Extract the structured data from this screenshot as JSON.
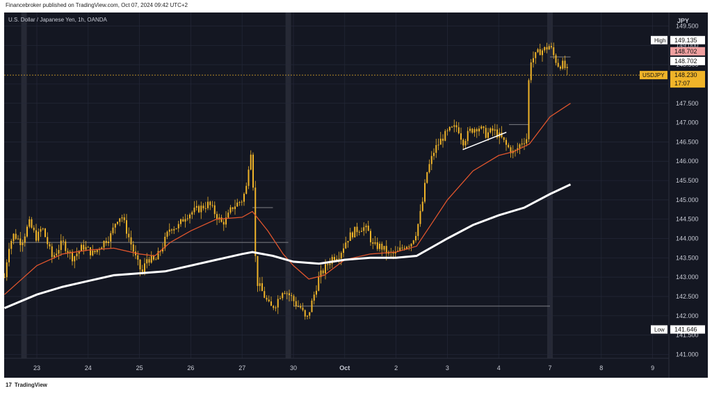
{
  "header": {
    "published": "Financebroker published on TradingView.com, Oct 07, 2024 09:42 UTC+2"
  },
  "footer": {
    "logo_mark": "17",
    "logo_text": "TradingView"
  },
  "chart_data": {
    "type": "candlestick",
    "title": "U.S. Dollar / Japanese Yen, 1h, OANDA",
    "currency": "JPY",
    "symbol": "USDJPY",
    "last_price": "148.230",
    "countdown": "17:07",
    "high_label": "High",
    "high_value": "149.135",
    "low_label": "Low",
    "low_value": "141.646",
    "marker_red": "148.702",
    "marker_white": "148.702",
    "ylim": [
      140.9,
      149.85
    ],
    "y_ticks": [
      "141.000",
      "141.500",
      "142.000",
      "142.500",
      "143.000",
      "143.500",
      "144.000",
      "144.500",
      "145.000",
      "145.500",
      "146.000",
      "146.500",
      "147.000",
      "147.500",
      "148.000",
      "148.500",
      "149.000",
      "149.500"
    ],
    "x_ticks": [
      {
        "label": "23",
        "d": 0
      },
      {
        "label": "24",
        "d": 1
      },
      {
        "label": "25",
        "d": 2
      },
      {
        "label": "26",
        "d": 3
      },
      {
        "label": "27",
        "d": 4
      },
      {
        "label": "30",
        "d": 5
      },
      {
        "label": "Oct",
        "d": 6
      },
      {
        "label": "2",
        "d": 7
      },
      {
        "label": "3",
        "d": 8
      },
      {
        "label": "4",
        "d": 9
      },
      {
        "label": "7",
        "d": 10
      },
      {
        "label": "8",
        "d": 11
      },
      {
        "label": "9",
        "d": 12
      }
    ],
    "price_path": [
      [
        -0.63,
        143.0
      ],
      [
        -0.55,
        143.8
      ],
      [
        -0.45,
        144.1
      ],
      [
        -0.3,
        143.9
      ],
      [
        -0.15,
        144.4
      ],
      [
        0.0,
        144.0
      ],
      [
        0.1,
        144.3
      ],
      [
        0.3,
        143.5
      ],
      [
        0.5,
        143.9
      ],
      [
        0.7,
        143.5
      ],
      [
        0.9,
        143.8
      ],
      [
        1.1,
        143.6
      ],
      [
        1.3,
        143.9
      ],
      [
        1.45,
        144.1
      ],
      [
        1.55,
        144.5
      ],
      [
        1.65,
        144.6
      ],
      [
        1.8,
        144.0
      ],
      [
        1.95,
        143.4
      ],
      [
        2.05,
        143.1
      ],
      [
        2.15,
        143.5
      ],
      [
        2.3,
        143.4
      ],
      [
        2.45,
        143.8
      ],
      [
        2.6,
        144.3
      ],
      [
        2.75,
        144.3
      ],
      [
        2.9,
        144.6
      ],
      [
        3.05,
        144.7
      ],
      [
        3.2,
        144.8
      ],
      [
        3.35,
        144.9
      ],
      [
        3.5,
        144.6
      ],
      [
        3.6,
        144.4
      ],
      [
        3.7,
        144.5
      ],
      [
        3.8,
        144.8
      ],
      [
        3.9,
        144.9
      ],
      [
        4.0,
        145.0
      ],
      [
        4.08,
        145.3
      ],
      [
        4.15,
        146.2
      ],
      [
        4.2,
        146.4
      ],
      [
        4.23,
        144.3
      ],
      [
        4.28,
        142.9
      ],
      [
        4.4,
        142.6
      ],
      [
        4.55,
        142.2
      ],
      [
        4.65,
        142.3
      ],
      [
        4.8,
        142.7
      ],
      [
        4.95,
        142.5
      ],
      [
        5.05,
        142.3
      ],
      [
        5.15,
        142.2
      ],
      [
        5.25,
        141.85
      ],
      [
        5.35,
        142.3
      ],
      [
        5.5,
        143.0
      ],
      [
        5.6,
        143.2
      ],
      [
        5.75,
        143.5
      ],
      [
        5.9,
        143.6
      ],
      [
        6.05,
        144.0
      ],
      [
        6.2,
        144.2
      ],
      [
        6.35,
        144.3
      ],
      [
        6.45,
        144.2
      ],
      [
        6.55,
        143.8
      ],
      [
        6.7,
        143.8
      ],
      [
        6.85,
        143.6
      ],
      [
        7.0,
        143.6
      ],
      [
        7.15,
        143.8
      ],
      [
        7.3,
        143.9
      ],
      [
        7.4,
        144.2
      ],
      [
        7.5,
        144.8
      ],
      [
        7.6,
        145.7
      ],
      [
        7.75,
        146.3
      ],
      [
        7.9,
        146.6
      ],
      [
        8.05,
        146.8
      ],
      [
        8.2,
        146.9
      ],
      [
        8.3,
        146.5
      ],
      [
        8.45,
        146.8
      ],
      [
        8.6,
        146.9
      ],
      [
        8.75,
        146.7
      ],
      [
        8.9,
        146.8
      ],
      [
        9.05,
        146.6
      ],
      [
        9.15,
        146.4
      ],
      [
        9.3,
        146.2
      ],
      [
        9.45,
        146.5
      ],
      [
        9.55,
        146.6
      ],
      [
        9.6,
        148.6
      ],
      [
        9.7,
        148.7
      ],
      [
        9.8,
        148.85
      ],
      [
        9.9,
        148.9
      ],
      [
        10.0,
        149.0
      ],
      [
        10.05,
        148.8
      ],
      [
        10.15,
        148.5
      ],
      [
        10.25,
        148.5
      ],
      [
        10.35,
        148.3
      ]
    ],
    "ma_fast": [
      [
        -0.63,
        142.55
      ],
      [
        0.0,
        143.3
      ],
      [
        0.5,
        143.6
      ],
      [
        1.0,
        143.7
      ],
      [
        1.5,
        143.75
      ],
      [
        2.0,
        143.6
      ],
      [
        2.3,
        143.55
      ],
      [
        2.6,
        143.9
      ],
      [
        3.0,
        144.2
      ],
      [
        3.5,
        144.5
      ],
      [
        4.0,
        144.55
      ],
      [
        4.2,
        144.7
      ],
      [
        4.5,
        144.2
      ],
      [
        4.8,
        143.6
      ],
      [
        5.0,
        143.3
      ],
      [
        5.3,
        142.95
      ],
      [
        5.6,
        143.05
      ],
      [
        6.0,
        143.45
      ],
      [
        6.5,
        143.6
      ],
      [
        7.0,
        143.65
      ],
      [
        7.4,
        143.8
      ],
      [
        7.7,
        144.4
      ],
      [
        8.0,
        145.0
      ],
      [
        8.5,
        145.75
      ],
      [
        9.0,
        146.15
      ],
      [
        9.3,
        146.25
      ],
      [
        9.6,
        146.45
      ],
      [
        10.0,
        147.15
      ],
      [
        10.4,
        147.5
      ]
    ],
    "ma_slow": [
      [
        -0.63,
        142.2
      ],
      [
        0.0,
        142.55
      ],
      [
        0.5,
        142.75
      ],
      [
        1.0,
        142.9
      ],
      [
        1.5,
        143.05
      ],
      [
        2.0,
        143.1
      ],
      [
        2.5,
        143.15
      ],
      [
        3.0,
        143.3
      ],
      [
        3.5,
        143.45
      ],
      [
        4.0,
        143.6
      ],
      [
        4.2,
        143.65
      ],
      [
        4.6,
        143.55
      ],
      [
        5.0,
        143.4
      ],
      [
        5.5,
        143.35
      ],
      [
        6.0,
        143.45
      ],
      [
        6.5,
        143.5
      ],
      [
        7.0,
        143.5
      ],
      [
        7.4,
        143.55
      ],
      [
        8.0,
        144.0
      ],
      [
        8.5,
        144.35
      ],
      [
        9.0,
        144.6
      ],
      [
        9.5,
        144.8
      ],
      [
        10.0,
        145.15
      ],
      [
        10.4,
        145.4
      ]
    ],
    "levels": [
      {
        "y": 143.9,
        "x0": -0.5,
        "x1": 4.9
      },
      {
        "y": 144.8,
        "x0": 4.2,
        "x1": 4.6
      },
      {
        "y": 142.25,
        "x0": 5.0,
        "x1": 10.0
      },
      {
        "y": 146.95,
        "x0": 9.2,
        "x1": 9.6
      },
      {
        "y": 148.7,
        "x0": 10.0,
        "x1": 10.4
      }
    ],
    "trendline": [
      [
        8.3,
        146.3
      ],
      [
        9.15,
        146.75
      ]
    ],
    "highlight_days": [
      -0.25,
      4.9,
      10.0
    ],
    "colors": {
      "background": "#141722",
      "candle": "#f0b429",
      "ma_fast": "#e0552d",
      "ma_slow": "#ffffff",
      "grid": "#242838",
      "text": "#c9ccd6",
      "price_tag": "#f0b429",
      "high_tag_bg": "#ffffff",
      "marker_red": "#f0a0a0",
      "level": "#7e7f86",
      "highlight": "#2a2e3b"
    }
  }
}
